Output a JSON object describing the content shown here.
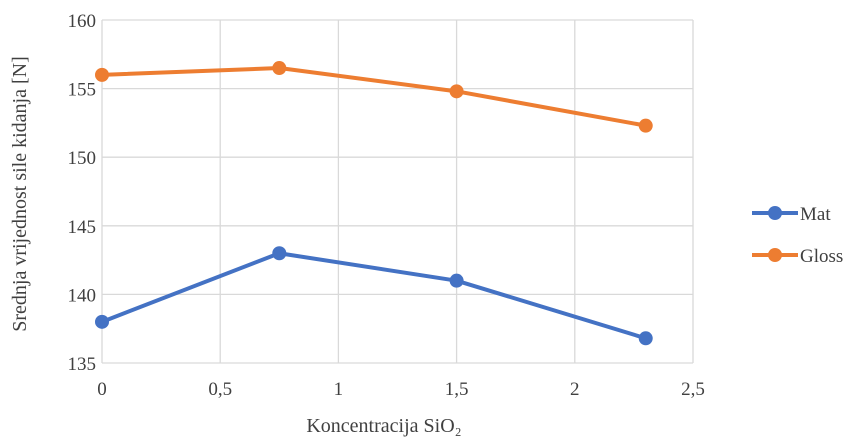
{
  "chart_data": {
    "type": "line",
    "title": "",
    "xlabel": "Koncentracija SiO₂",
    "ylabel": "Srednja vrijednost sile kidanja [N]",
    "xlim": [
      0,
      2.5
    ],
    "ylim": [
      135,
      160
    ],
    "x_ticks": [
      "0",
      "0,5",
      "1",
      "1,5",
      "2",
      "2,5"
    ],
    "y_ticks": [
      "135",
      "140",
      "145",
      "150",
      "155",
      "160"
    ],
    "grid": true,
    "legend_position": "right",
    "x": [
      0,
      0.75,
      1.5,
      2.3
    ],
    "series": [
      {
        "name": "Mat",
        "color": "#4472C4",
        "values": [
          138.0,
          143.0,
          141.0,
          136.8
        ]
      },
      {
        "name": "Gloss",
        "color": "#ED7D31",
        "values": [
          156.0,
          156.5,
          154.8,
          152.3
        ]
      }
    ]
  }
}
